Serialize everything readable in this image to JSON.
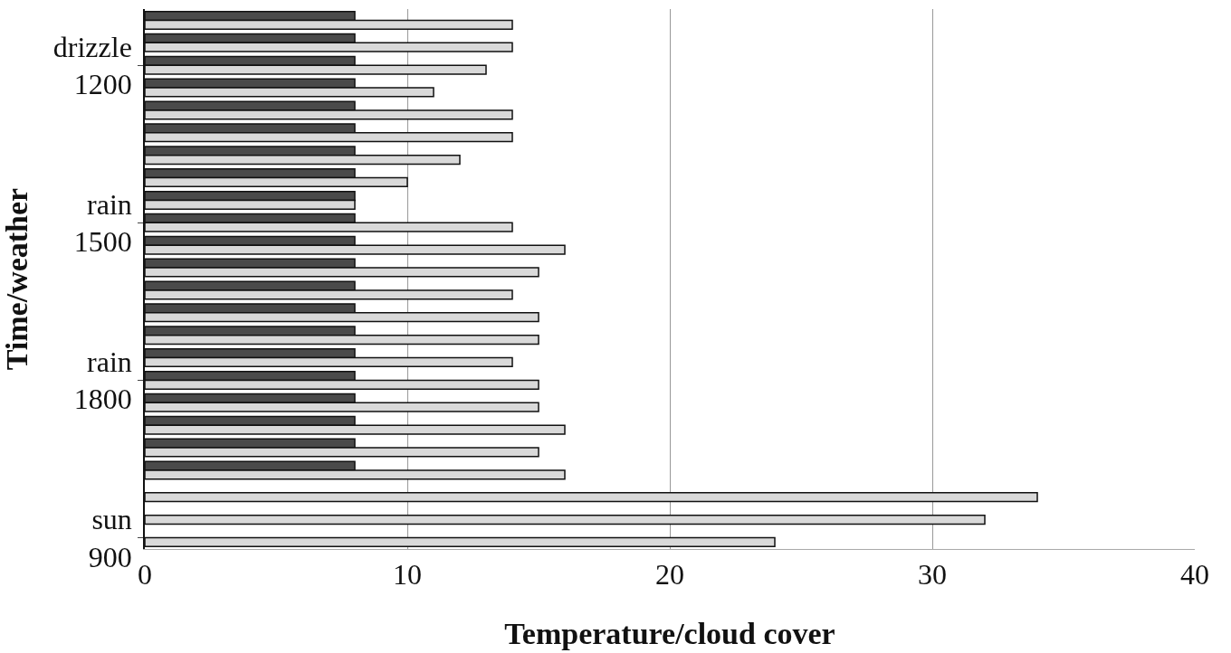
{
  "chart_data": {
    "type": "bar",
    "orientation": "horizontal",
    "xlabel": "Temperature/cloud cover",
    "ylabel": "Time/weather",
    "categories": [
      null,
      null,
      "drizzle\n1200",
      null,
      null,
      null,
      null,
      null,
      null,
      "rain\n1500",
      null,
      null,
      null,
      null,
      null,
      null,
      "rain\n1800",
      null,
      null,
      null,
      null,
      null,
      null,
      "sun\n900"
    ],
    "series": [
      {
        "color": "#4a4a4a",
        "values": [
          8,
          8,
          8,
          8,
          8,
          8,
          8,
          8,
          8,
          8,
          8,
          8,
          8,
          8,
          8,
          8,
          8,
          8,
          8,
          8,
          8,
          null,
          null,
          null
        ]
      },
      {
        "color": "#d9d9d9",
        "values": [
          14,
          14,
          13,
          11,
          14,
          14,
          12,
          10,
          8,
          14,
          16,
          15,
          14,
          15,
          15,
          14,
          15,
          15,
          16,
          15,
          16,
          34,
          32,
          24
        ]
      }
    ],
    "xlim": [
      0,
      40
    ],
    "xticks": [
      0,
      10,
      20,
      30,
      40
    ],
    "grid": "x"
  }
}
